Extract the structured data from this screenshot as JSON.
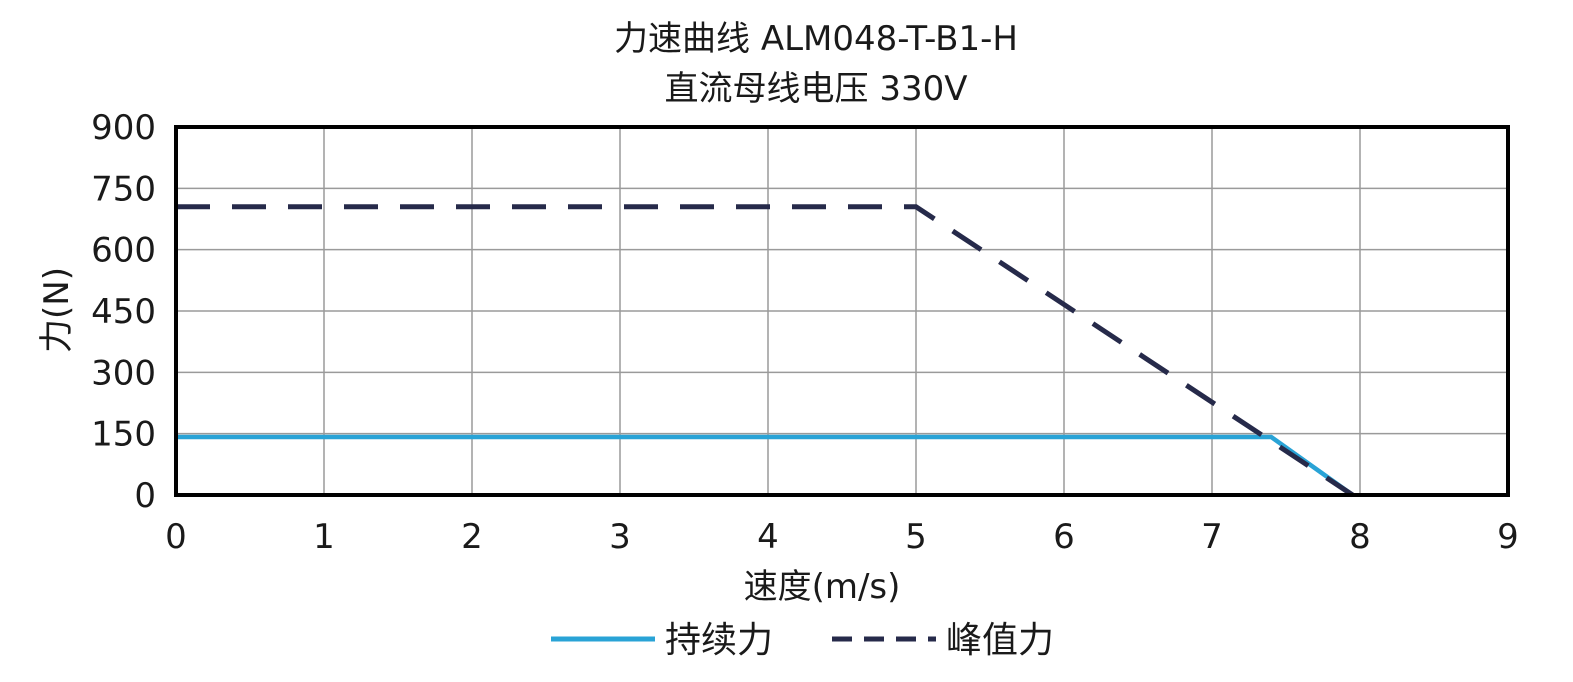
{
  "chart_data": {
    "type": "line",
    "title": "力速曲线 ALM048-T-B1-H",
    "subtitle": "直流母线电压 330V",
    "xlabel": "速度(m/s)",
    "ylabel": "力(N)",
    "xlim": [
      0,
      9
    ],
    "ylim": [
      0,
      900
    ],
    "xticks": [
      0,
      1,
      2,
      3,
      4,
      5,
      6,
      7,
      8,
      9
    ],
    "yticks": [
      0,
      150,
      300,
      450,
      600,
      750,
      900
    ],
    "xtick_labels": [
      "0",
      "1",
      "2",
      "3",
      "4",
      "5",
      "6",
      "7",
      "8",
      "9"
    ],
    "ytick_labels": [
      "0",
      "150",
      "300",
      "450",
      "600",
      "750",
      "900"
    ],
    "grid": true,
    "legend_position": "bottom",
    "series": [
      {
        "name": "持续力",
        "style": "solid",
        "color": "#29a3d6",
        "x": [
          0,
          7.4,
          7.95
        ],
        "y": [
          142,
          142,
          0
        ]
      },
      {
        "name": "峰值力",
        "style": "dashed",
        "color": "#262a4a",
        "x": [
          0,
          5.0,
          7.95
        ],
        "y": [
          705,
          705,
          0
        ]
      }
    ]
  }
}
